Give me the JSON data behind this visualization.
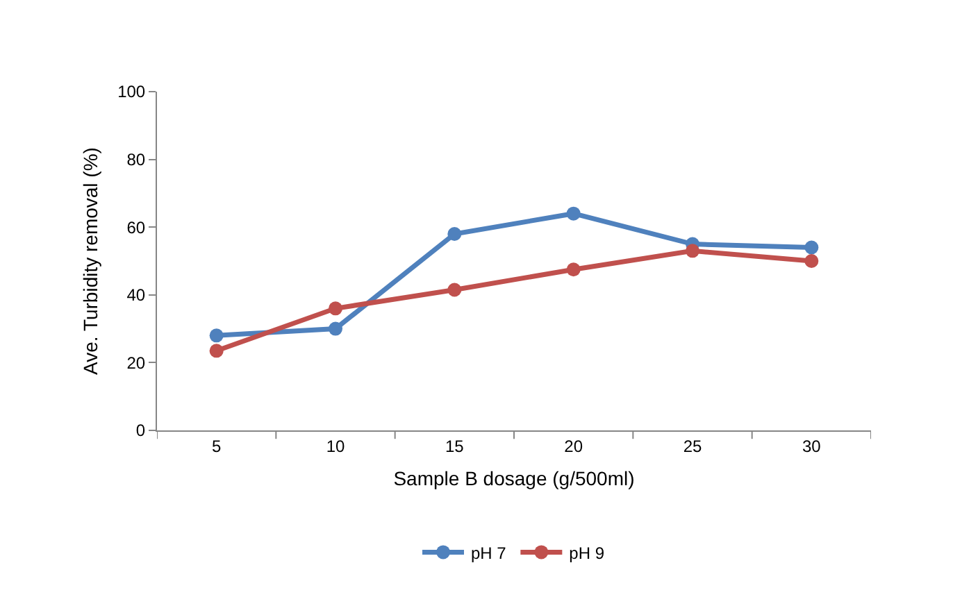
{
  "chart_data": {
    "type": "line",
    "xlabel": "Sample B dosage (g/500ml)",
    "ylabel": "Ave. Turbidity removal (%)",
    "categories": [
      "5",
      "10",
      "15",
      "20",
      "25",
      "30"
    ],
    "series": [
      {
        "name": "pH 7",
        "color": "#4f81bd",
        "values": [
          28,
          30,
          58,
          64,
          55,
          54
        ]
      },
      {
        "name": "pH 9",
        "color": "#c0504d",
        "values": [
          23.5,
          36,
          41.5,
          47.5,
          53,
          50
        ]
      }
    ],
    "ylim": [
      0,
      100
    ],
    "yticks": [
      0,
      20,
      40,
      60,
      80,
      100
    ],
    "grid": false,
    "legend": "bottom",
    "marker": "circle",
    "line_style": "solid"
  }
}
